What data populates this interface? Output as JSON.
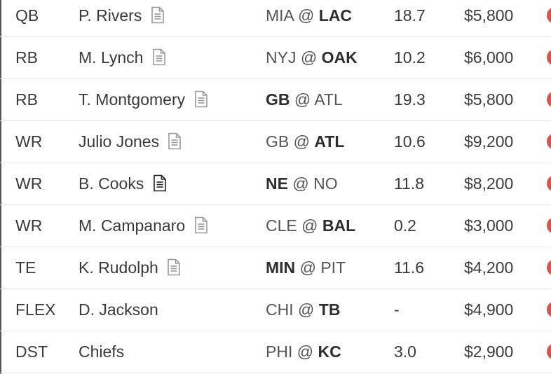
{
  "rows": [
    {
      "position": "QB",
      "player": "P. Rivers",
      "note_icon": "document-icon",
      "note_active": false,
      "away": "MIA",
      "sep": "@",
      "home": "LAC",
      "bold": "home",
      "projection": "18.7",
      "salary": "$5,800"
    },
    {
      "position": "RB",
      "player": "M. Lynch",
      "note_icon": "document-icon",
      "note_active": false,
      "away": "NYJ",
      "sep": "@",
      "home": "OAK",
      "bold": "home",
      "projection": "10.2",
      "salary": "$6,000"
    },
    {
      "position": "RB",
      "player": "T. Montgomery",
      "note_icon": "document-icon",
      "note_active": false,
      "away": "GB",
      "sep": "@",
      "home": "ATL",
      "bold": "away",
      "projection": "19.3",
      "salary": "$5,800"
    },
    {
      "position": "WR",
      "player": "Julio Jones",
      "note_icon": "document-icon",
      "note_active": false,
      "away": "GB",
      "sep": "@",
      "home": "ATL",
      "bold": "home",
      "projection": "10.6",
      "salary": "$9,200"
    },
    {
      "position": "WR",
      "player": "B. Cooks",
      "note_icon": "document-icon",
      "note_active": true,
      "away": "NE",
      "sep": "@",
      "home": "NO",
      "bold": "away",
      "projection": "11.8",
      "salary": "$8,200"
    },
    {
      "position": "WR",
      "player": "M. Campanaro",
      "note_icon": "document-icon",
      "note_active": false,
      "away": "CLE",
      "sep": "@",
      "home": "BAL",
      "bold": "home",
      "projection": "0.2",
      "salary": "$3,000"
    },
    {
      "position": "TE",
      "player": "K. Rudolph",
      "note_icon": "document-icon",
      "note_active": false,
      "away": "MIN",
      "sep": "@",
      "home": "PIT",
      "bold": "away",
      "projection": "11.6",
      "salary": "$4,200"
    },
    {
      "position": "FLEX",
      "player": "D. Jackson",
      "note_icon": "",
      "note_active": false,
      "away": "CHI",
      "sep": "@",
      "home": "TB",
      "bold": "home",
      "projection": "-",
      "salary": "$4,900"
    },
    {
      "position": "DST",
      "player": "Chiefs",
      "note_icon": "",
      "note_active": false,
      "away": "PHI",
      "sep": "@",
      "home": "KC",
      "bold": "home",
      "projection": "3.0",
      "salary": "$2,900"
    }
  ],
  "colors": {
    "remove_button": "#d9534f",
    "note_inactive": "#9a9a9a",
    "note_active": "#222222",
    "row_divider": "#e6e6e6"
  }
}
